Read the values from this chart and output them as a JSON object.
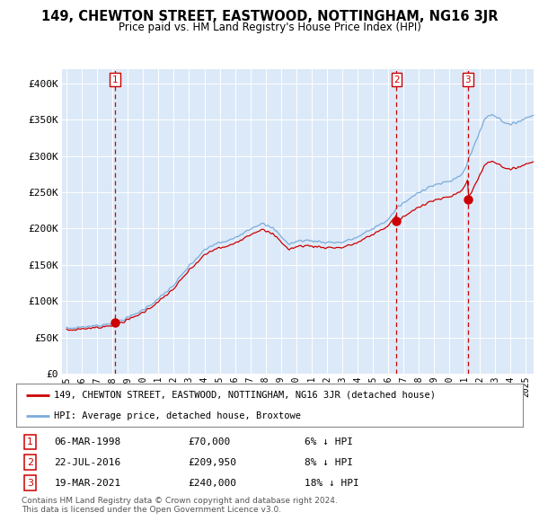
{
  "title": "149, CHEWTON STREET, EASTWOOD, NOTTINGHAM, NG16 3JR",
  "subtitle": "Price paid vs. HM Land Registry's House Price Index (HPI)",
  "red_label": "149, CHEWTON STREET, EASTWOOD, NOTTINGHAM, NG16 3JR (detached house)",
  "blue_label": "HPI: Average price, detached house, Broxtowe",
  "transactions": [
    {
      "num": 1,
      "date": "06-MAR-1998",
      "price": 70000,
      "pct": "6%",
      "dir": "↓"
    },
    {
      "num": 2,
      "date": "22-JUL-2016",
      "price": 209950,
      "pct": "8%",
      "dir": "↓"
    },
    {
      "num": 3,
      "date": "19-MAR-2021",
      "price": 240000,
      "pct": "18%",
      "dir": "↓"
    }
  ],
  "transaction_dates_decimal": [
    1998.18,
    2016.55,
    2021.21
  ],
  "transaction_prices": [
    70000,
    209950,
    240000
  ],
  "ylim": [
    0,
    420000
  ],
  "yticks": [
    0,
    50000,
    100000,
    150000,
    200000,
    250000,
    300000,
    350000,
    400000
  ],
  "ytick_labels": [
    "£0",
    "£50K",
    "£100K",
    "£150K",
    "£200K",
    "£250K",
    "£300K",
    "£350K",
    "£400K"
  ],
  "xlim_start": 1994.7,
  "xlim_end": 2025.5,
  "chart_bg": "#dce9f8",
  "fig_bg": "#ffffff",
  "grid_color": "#ffffff",
  "red_color": "#cc0000",
  "blue_color": "#7aacda",
  "footnote": "Contains HM Land Registry data © Crown copyright and database right 2024.\nThis data is licensed under the Open Government Licence v3.0."
}
